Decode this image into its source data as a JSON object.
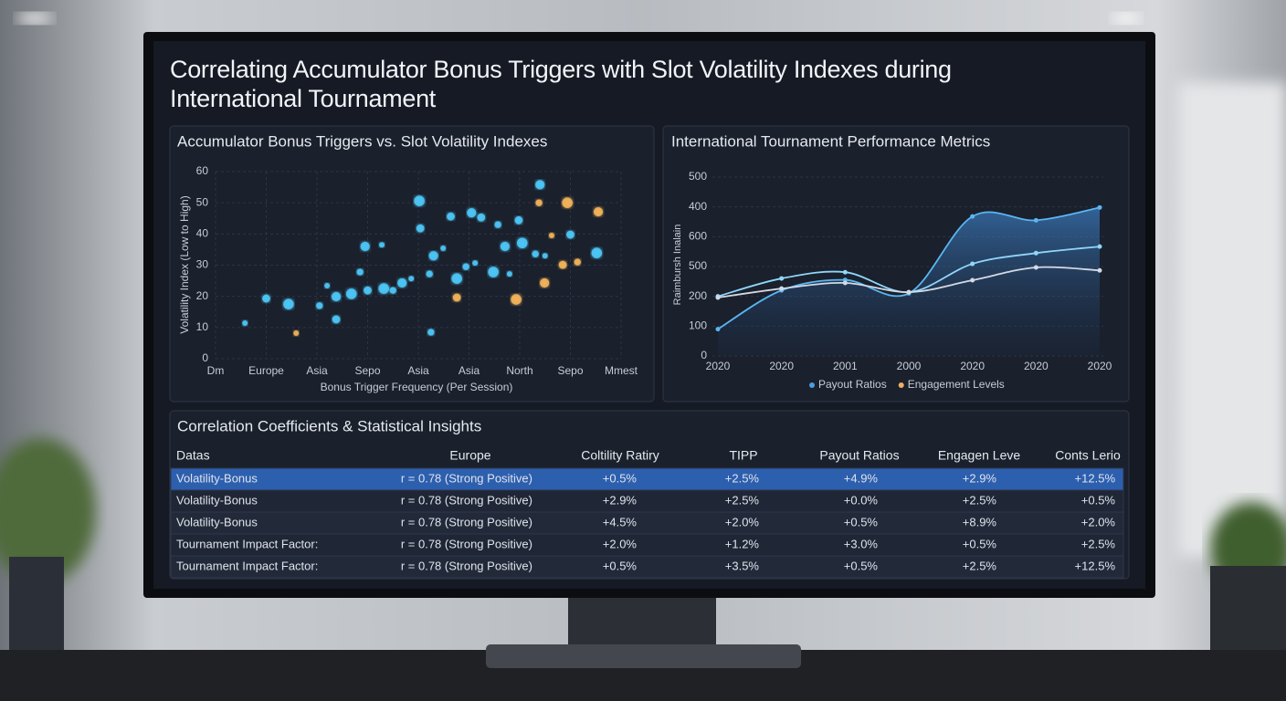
{
  "title": "Correlating Accumulator Bonus Triggers with Slot Volatility Indexes during International Tournament",
  "chart_data": [
    {
      "type": "scatter",
      "title": "Accumulator Bonus Triggers vs. Slot Volatility Indexes",
      "x_label": "Bonus Trigger Frequency (Per Session)",
      "y_label": "Volatility Index (Low to High)",
      "xlim": [
        0,
        8
      ],
      "xticks": [
        {
          "value": 0,
          "label": "Dm"
        },
        {
          "value": 1,
          "label": "Europe"
        },
        {
          "value": 2,
          "label": "Asia"
        },
        {
          "value": 3,
          "label": "Sepo"
        },
        {
          "value": 4,
          "label": "Asia"
        },
        {
          "value": 5,
          "label": "Asia"
        },
        {
          "value": 6,
          "label": "North"
        },
        {
          "value": 7,
          "label": "Sepo"
        },
        {
          "value": 8,
          "label": "Mmest"
        }
      ],
      "ylim": [
        0,
        60
      ],
      "yticks": [
        0,
        10,
        20,
        30,
        40,
        50,
        60
      ],
      "grid": true,
      "series": [
        {
          "color": "#4cc6f7",
          "x": [
            0.58,
            1.0,
            1.44,
            2.05,
            2.38,
            2.2,
            2.38,
            2.68,
            2.85,
            2.95,
            3.28,
            3.0,
            3.32,
            3.5,
            3.68,
            3.86,
            4.04,
            4.02,
            4.22,
            4.3,
            4.49,
            4.64,
            4.76,
            4.94,
            5.05,
            5.12,
            5.24,
            5.48,
            5.57,
            5.71,
            5.8,
            5.98,
            6.05,
            6.31,
            6.4,
            6.5,
            7.0,
            7.52,
            4.25
          ],
          "values": [
            11.4,
            19.3,
            17.5,
            17,
            19.9,
            23.4,
            12.6,
            20.8,
            27.8,
            36,
            36.5,
            21.9,
            22.5,
            21.9,
            24.3,
            25.7,
            41.8,
            50.6,
            27.2,
            33,
            35.4,
            45.6,
            25.7,
            29.5,
            46.8,
            30.7,
            45.3,
            27.8,
            43,
            36,
            27.2,
            44.4,
            37.1,
            33.6,
            55.8,
            33,
            39.8,
            33.9,
            8.5
          ]
        },
        {
          "color": "#f2b45a",
          "x": [
            1.59,
            4.76,
            5.93,
            6.38,
            6.49,
            6.63,
            6.85,
            6.94,
            7.14,
            7.55
          ],
          "values": [
            8.2,
            19.6,
            19,
            50,
            24.3,
            39.5,
            30.1,
            50,
            31,
            47.1
          ]
        }
      ]
    },
    {
      "type": "line",
      "title": "International Tournament Performance Metrics",
      "y_label": "Raimbursh Inalain",
      "categories": [
        "2020",
        "2020",
        "2001",
        "2000",
        "2020",
        "2020",
        "2020"
      ],
      "ylim": [
        0,
        600
      ],
      "yticks": [
        0,
        100,
        200,
        {
          "value": 300,
          "label": "500"
        },
        {
          "value": 400,
          "label": "600"
        },
        {
          "value": 500,
          "label": "400"
        },
        {
          "value": 600,
          "label": "500"
        }
      ],
      "grid": true,
      "legend": "bottom",
      "series": [
        {
          "name": "Payout Ratios",
          "color": "#5ab6f2",
          "legend_color": "#4a9fe0",
          "values": [
            90,
            220,
            255,
            210,
            468,
            455,
            498
          ]
        },
        {
          "name": "Engagement Levels",
          "color": "#8fd6fa",
          "legend_color": "#f0b060",
          "values": [
            200,
            260,
            281,
            214,
            309,
            345,
            367
          ]
        },
        {
          "color": "#d4d9e4",
          "values": [
            196,
            226,
            245,
            214,
            254,
            297,
            287
          ]
        }
      ]
    }
  ],
  "table": {
    "title": "Correlation Coefficients & Statistical Insights",
    "header": [
      "Datas",
      "Europe",
      "Coltility Ratiry",
      "TIPP",
      "Payout Ratios",
      "Engagen Leve",
      "Conts Lerio"
    ],
    "rows": [
      [
        "Volatility-Bonus",
        "r = 0.78 (Strong Positive)",
        "+0.5%",
        "+2.5%",
        "+4.9%",
        "+2.9%",
        "+12.5%"
      ],
      [
        "Volatility-Bonus",
        "r = 0.78 (Strong Positive)",
        "+2.9%",
        "+2.5%",
        "+0.0%",
        "+2.5%",
        "+0.5%"
      ],
      [
        "Volatility-Bonus",
        "r = 0.78 (Strong Positive)",
        "+4.5%",
        "+2.0%",
        "+0.5%",
        "+8.9%",
        "+2.0%"
      ],
      [
        "Tournament Impact Factor:",
        "r = 0.78 (Strong Positive)",
        "+2.0%",
        "+1.2%",
        "+3.0%",
        "+0.5%",
        "+2.5%"
      ],
      [
        "Tournament Impact Factor:",
        "r = 0.78 (Strong Positive)",
        "+0.5%",
        "+3.5%",
        "+0.5%",
        "+2.5%",
        "+12.5%"
      ]
    ]
  }
}
